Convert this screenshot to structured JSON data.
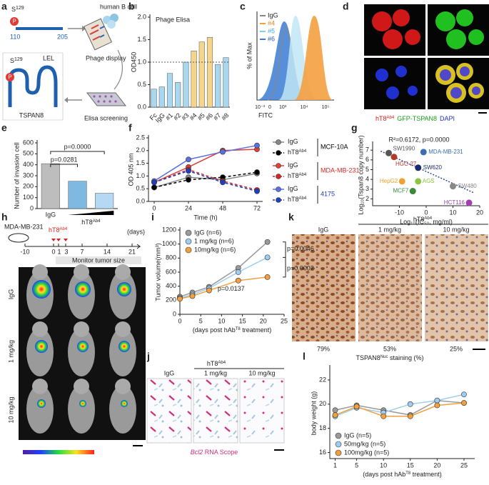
{
  "panel_letters": [
    "a",
    "b",
    "c",
    "d",
    "e",
    "f",
    "g",
    "h",
    "i",
    "j",
    "k",
    "l"
  ],
  "panel_a": {
    "site": "S",
    "site_sup": "129",
    "start": "110",
    "end": "205",
    "source": "human B cell",
    "step1": "Phage display",
    "step2": "Elisa screening",
    "loop": "LEL",
    "protein": "TSPAN8",
    "phospho": "P"
  },
  "panel_c": {
    "legend": [
      "IgG",
      "#4",
      "#5",
      "#6"
    ],
    "ylabel": "% of Max",
    "xlabel": "FITC",
    "xtick_labels": [
      "10⁻³",
      "0",
      "10³",
      "10⁴",
      "10⁵"
    ]
  },
  "panel_d": {
    "stain1": "hT8",
    "stain1_sup": "Ab4",
    "stain2": "GFP-TSPAN8",
    "stain3": "DAPI"
  },
  "panel_h": {
    "cell_line": "MDA-MB-231",
    "drug": "hT8",
    "drug_sup": "Ab4",
    "unit": "(days)",
    "timeline": [
      "-10",
      "0",
      "1",
      "3",
      "7",
      "14",
      "21"
    ],
    "monitor": "Monitor tumor size",
    "rows": [
      "IgG",
      "1 mg/kg",
      "10 mg/kg"
    ]
  },
  "panel_j": {
    "columns": [
      "IgG",
      "1 mg/kg",
      "10 mg/kg"
    ],
    "drug": "hT8",
    "drug_sup": "Ab4",
    "caption_gene": "Bcl2",
    "caption": " RNA Scope"
  },
  "panel_k": {
    "columns": [
      "IgG",
      "1 mg/kg",
      "10 mg/kg"
    ],
    "drug": "hT8",
    "drug_sup": "Ab4",
    "percents": [
      "79%",
      "53%",
      "25%"
    ],
    "caption": [
      "TSPAN8",
      "Nuc",
      " staining (%)"
    ]
  },
  "chart_data": [
    {
      "type": "bar",
      "title": "Phage Elisa",
      "ylabel": "OD450",
      "categories": [
        "Fc",
        "IgG",
        "#1",
        "#2",
        "#3",
        "#4",
        "#5",
        "#6",
        "#7",
        "#8"
      ],
      "values": [
        0.4,
        0.45,
        0.75,
        0.55,
        1.0,
        1.25,
        1.45,
        1.55,
        0.95,
        1.1
      ],
      "colors": [
        "#a8d8ef",
        "#a8d8ef",
        "#a8d8ef",
        "#a8d8ef",
        "#a8d8ef",
        "#f5d58c",
        "#f5d58c",
        "#f5d58c",
        "#a8d8ef",
        "#a8d8ef"
      ],
      "reference_line": 1,
      "ylim": [
        0,
        2
      ],
      "yticks": [
        {
          "value": 0,
          "label": "0.0"
        },
        {
          "value": 0.5,
          "label": "0.5"
        },
        {
          "value": 1,
          "label": "1.0"
        },
        {
          "value": 1.5,
          "label": "1.5"
        },
        {
          "value": 2,
          "label": "2.0"
        }
      ]
    },
    {
      "type": "bar",
      "ylabel": "Number of invasion cell",
      "categories": [
        "IgG",
        null,
        null
      ],
      "values": [
        410,
        250,
        140
      ],
      "colors": [
        "#bdbdbd",
        "#7fb8e0",
        "#b5d9f2"
      ],
      "group_label": "hT8",
      "group_label_sup": "Ab4",
      "annotations": [
        "p=0.0281",
        "p=0.0000"
      ],
      "ylim": [
        0,
        600
      ],
      "yticks": [
        0,
        100,
        200,
        300,
        400,
        500,
        600
      ]
    },
    {
      "type": "line",
      "ylabel": "OD 405 nm",
      "xlabel": "Time (h)",
      "x": [
        0,
        24,
        48,
        72
      ],
      "xlim": [
        -4,
        76
      ],
      "xticks": [
        0,
        24,
        48,
        72
      ],
      "ylim": [
        0,
        2.5
      ],
      "yticks": [
        {
          "value": 0,
          "label": "0.0"
        },
        {
          "value": 0.5,
          "label": "0.5"
        },
        {
          "value": 1,
          "label": "1.0"
        },
        {
          "value": 1.5,
          "label": "1.5"
        },
        {
          "value": 2,
          "label": "2.0"
        },
        {
          "value": 2.5,
          "label": "2.5"
        }
      ],
      "groups": [
        "MCF-10A",
        "MDA-MB-231",
        "4175"
      ],
      "group_colors": [
        "#000000",
        "#d62728",
        "#1f3fc0"
      ],
      "series": [
        {
          "name": "IgG",
          "color": "#888888",
          "style": "solid",
          "values": [
            0.55,
            0.95,
            0.85,
            1.1
          ]
        },
        {
          "name": "hT8",
          "name_sup": "Ab4",
          "color": "#000000",
          "style": "dashed",
          "values": [
            0.55,
            0.85,
            0.95,
            1.15
          ]
        },
        {
          "name": "IgG",
          "color": "#e0403a",
          "style": "solid",
          "values": [
            0.75,
            1.35,
            2.0,
            2.05
          ]
        },
        {
          "name": "hT8",
          "name_sup": "Ab4",
          "color": "#d62728",
          "style": "dashed",
          "values": [
            0.75,
            1.25,
            0.8,
            0.45
          ]
        },
        {
          "name": "IgG",
          "color": "#5a70e0",
          "style": "solid",
          "values": [
            0.8,
            1.65,
            1.95,
            2.2
          ]
        },
        {
          "name": "hT8",
          "name_sup": "Ab4",
          "color": "#1f3fc0",
          "style": "dashed",
          "values": [
            0.75,
            1.2,
            0.75,
            0.4
          ]
        }
      ]
    },
    {
      "type": "scatter",
      "title": "R²=0.6172, p=0.0000",
      "xlabel": "Log₁₀(IC₅₀, mg/ml)",
      "ylabel": "Log₁₀(Tspan8 copy number)",
      "xlim": [
        -20,
        20
      ],
      "xticks": [
        -10,
        0,
        10,
        20
      ],
      "ylim": [
        1.3,
        7.6
      ],
      "yticks": [
        2,
        3,
        4,
        5,
        6,
        7
      ],
      "labels": [
        "SW1990",
        "MDA-MB-231",
        "HGC-27",
        "SW620",
        "HepG2",
        "AGS",
        "MCF7",
        "SW480",
        "HCT116"
      ],
      "x": [
        -14,
        -1,
        -12,
        -3,
        -9,
        -3,
        -5,
        10,
        16
      ],
      "y": [
        6.7,
        6.8,
        6.3,
        5.2,
        3.8,
        3.8,
        2.8,
        3.3,
        1.6
      ],
      "colors": [
        "#555555",
        "#3a6fb0",
        "#b23a2a",
        "#1a2a6c",
        "#f0a030",
        "#8cc63f",
        "#3a8a3a",
        "#888888",
        "#a040b0"
      ],
      "fit_line": {
        "x": [
          -17,
          18
        ],
        "y": [
          6.9,
          2.6
        ]
      }
    },
    {
      "type": "line",
      "ylabel": "Tumor volume(mm³)",
      "xlabel": [
        "(days post hAb",
        "T8",
        " treatment)"
      ],
      "x": [
        0,
        3,
        7,
        14,
        21
      ],
      "xlim": [
        0,
        25
      ],
      "xticks": [
        0,
        5,
        10,
        15,
        20,
        25
      ],
      "ylim": [
        0,
        1200
      ],
      "yticks": [
        0,
        200,
        400,
        600,
        800,
        1000,
        1200
      ],
      "legend": "upper left",
      "annotations": [
        "p=0.0046",
        "p=0.0002",
        "p=0.0137"
      ],
      "series": [
        {
          "name": "IgG (n=6)",
          "color": "#9a9a9a",
          "values": [
            250,
            310,
            390,
            660,
            1030
          ]
        },
        {
          "name": "1 mg/kg (n=6)",
          "color": "#9fcdf0",
          "values": [
            230,
            280,
            370,
            600,
            810
          ]
        },
        {
          "name": "10mg/kg (n=6)",
          "color": "#f0a040",
          "values": [
            220,
            260,
            340,
            480,
            530
          ]
        }
      ]
    },
    {
      "type": "line",
      "ylabel": "body weight (g)",
      "xlabel": [
        "(days post hAb",
        "T8",
        " treatment)"
      ],
      "x": [
        1,
        5,
        10,
        15,
        20,
        25
      ],
      "xlim": [
        0,
        27
      ],
      "xticks": [
        1,
        5,
        10,
        15,
        20,
        25
      ],
      "ylim": [
        15.5,
        23
      ],
      "yticks": [
        16,
        18,
        20,
        22
      ],
      "legend": "lower left",
      "series": [
        {
          "name": "IgG (n=5)",
          "color": "#9a9a9a",
          "values": [
            19.5,
            19.9,
            19.5,
            19.1,
            20.3,
            20.1
          ]
        },
        {
          "name": "50mg/kg (n=5)",
          "color": "#9fcdf0",
          "values": [
            19.0,
            19.7,
            19.3,
            20.0,
            20.3,
            20.8
          ]
        },
        {
          "name": "100mg/kg (n=5)",
          "color": "#f0a040",
          "values": [
            19.1,
            19.8,
            19.0,
            19.0,
            19.9,
            20.1
          ]
        }
      ]
    }
  ]
}
